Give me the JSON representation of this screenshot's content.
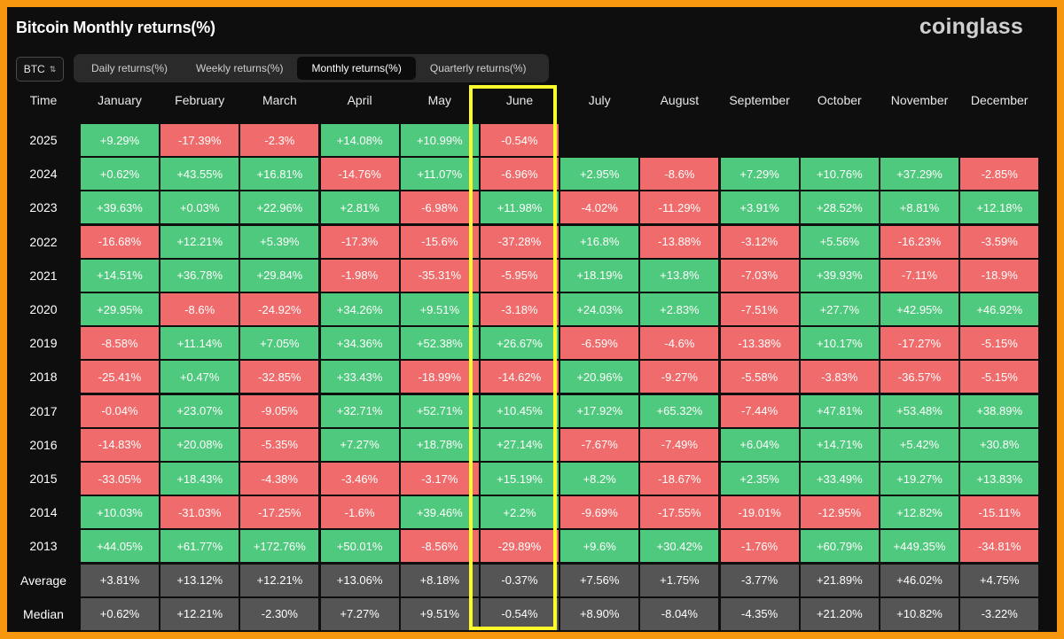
{
  "title": "Bitcoin Monthly returns(%)",
  "brand": "coinglass",
  "asset_selector": {
    "value": "BTC"
  },
  "tabs": [
    {
      "label": "Daily returns(%)",
      "active": false
    },
    {
      "label": "Weekly returns(%)",
      "active": false
    },
    {
      "label": "Monthly returns(%)",
      "active": true
    },
    {
      "label": "Quarterly returns(%)",
      "active": false
    }
  ],
  "colors": {
    "positive": "#4fc97d",
    "negative": "#f06b6b",
    "stat": "#555555",
    "highlight": "#fcfc2c",
    "frame": "#f7960f"
  },
  "highlight_column": "June",
  "chart_data": {
    "type": "table",
    "title": "Bitcoin Monthly returns(%)",
    "corner_label": "Time",
    "columns": [
      "January",
      "February",
      "March",
      "April",
      "May",
      "June",
      "July",
      "August",
      "September",
      "October",
      "November",
      "December"
    ],
    "rows": [
      {
        "label": "2025",
        "values": [
          "+9.29%",
          "-17.39%",
          "-2.3%",
          "+14.08%",
          "+10.99%",
          "-0.54%",
          "",
          "",
          "",
          "",
          "",
          ""
        ]
      },
      {
        "label": "2024",
        "values": [
          "+0.62%",
          "+43.55%",
          "+16.81%",
          "-14.76%",
          "+11.07%",
          "-6.96%",
          "+2.95%",
          "-8.6%",
          "+7.29%",
          "+10.76%",
          "+37.29%",
          "-2.85%"
        ]
      },
      {
        "label": "2023",
        "values": [
          "+39.63%",
          "+0.03%",
          "+22.96%",
          "+2.81%",
          "-6.98%",
          "+11.98%",
          "-4.02%",
          "-11.29%",
          "+3.91%",
          "+28.52%",
          "+8.81%",
          "+12.18%"
        ]
      },
      {
        "label": "2022",
        "values": [
          "-16.68%",
          "+12.21%",
          "+5.39%",
          "-17.3%",
          "-15.6%",
          "-37.28%",
          "+16.8%",
          "-13.88%",
          "-3.12%",
          "+5.56%",
          "-16.23%",
          "-3.59%"
        ]
      },
      {
        "label": "2021",
        "values": [
          "+14.51%",
          "+36.78%",
          "+29.84%",
          "-1.98%",
          "-35.31%",
          "-5.95%",
          "+18.19%",
          "+13.8%",
          "-7.03%",
          "+39.93%",
          "-7.11%",
          "-18.9%"
        ]
      },
      {
        "label": "2020",
        "values": [
          "+29.95%",
          "-8.6%",
          "-24.92%",
          "+34.26%",
          "+9.51%",
          "-3.18%",
          "+24.03%",
          "+2.83%",
          "-7.51%",
          "+27.7%",
          "+42.95%",
          "+46.92%"
        ]
      },
      {
        "label": "2019",
        "values": [
          "-8.58%",
          "+11.14%",
          "+7.05%",
          "+34.36%",
          "+52.38%",
          "+26.67%",
          "-6.59%",
          "-4.6%",
          "-13.38%",
          "+10.17%",
          "-17.27%",
          "-5.15%"
        ]
      },
      {
        "label": "2018",
        "values": [
          "-25.41%",
          "+0.47%",
          "-32.85%",
          "+33.43%",
          "-18.99%",
          "-14.62%",
          "+20.96%",
          "-9.27%",
          "-5.58%",
          "-3.83%",
          "-36.57%",
          "-5.15%"
        ]
      },
      {
        "label": "2017",
        "values": [
          "-0.04%",
          "+23.07%",
          "-9.05%",
          "+32.71%",
          "+52.71%",
          "+10.45%",
          "+17.92%",
          "+65.32%",
          "-7.44%",
          "+47.81%",
          "+53.48%",
          "+38.89%"
        ]
      },
      {
        "label": "2016",
        "values": [
          "-14.83%",
          "+20.08%",
          "-5.35%",
          "+7.27%",
          "+18.78%",
          "+27.14%",
          "-7.67%",
          "-7.49%",
          "+6.04%",
          "+14.71%",
          "+5.42%",
          "+30.8%"
        ]
      },
      {
        "label": "2015",
        "values": [
          "-33.05%",
          "+18.43%",
          "-4.38%",
          "-3.46%",
          "-3.17%",
          "+15.19%",
          "+8.2%",
          "-18.67%",
          "+2.35%",
          "+33.49%",
          "+19.27%",
          "+13.83%"
        ]
      },
      {
        "label": "2014",
        "values": [
          "+10.03%",
          "-31.03%",
          "-17.25%",
          "-1.6%",
          "+39.46%",
          "+2.2%",
          "-9.69%",
          "-17.55%",
          "-19.01%",
          "-12.95%",
          "+12.82%",
          "-15.11%"
        ]
      },
      {
        "label": "2013",
        "values": [
          "+44.05%",
          "+61.77%",
          "+172.76%",
          "+50.01%",
          "-8.56%",
          "-29.89%",
          "+9.6%",
          "+30.42%",
          "-1.76%",
          "+60.79%",
          "+449.35%",
          "-34.81%"
        ]
      }
    ],
    "summary_rows": [
      {
        "label": "Average",
        "values": [
          "+3.81%",
          "+13.12%",
          "+12.21%",
          "+13.06%",
          "+8.18%",
          "-0.37%",
          "+7.56%",
          "+1.75%",
          "-3.77%",
          "+21.89%",
          "+46.02%",
          "+4.75%"
        ]
      },
      {
        "label": "Median",
        "values": [
          "+0.62%",
          "+12.21%",
          "-2.30%",
          "+7.27%",
          "+9.51%",
          "-0.54%",
          "+8.90%",
          "-8.04%",
          "-4.35%",
          "+21.20%",
          "+10.82%",
          "-3.22%"
        ]
      }
    ]
  }
}
